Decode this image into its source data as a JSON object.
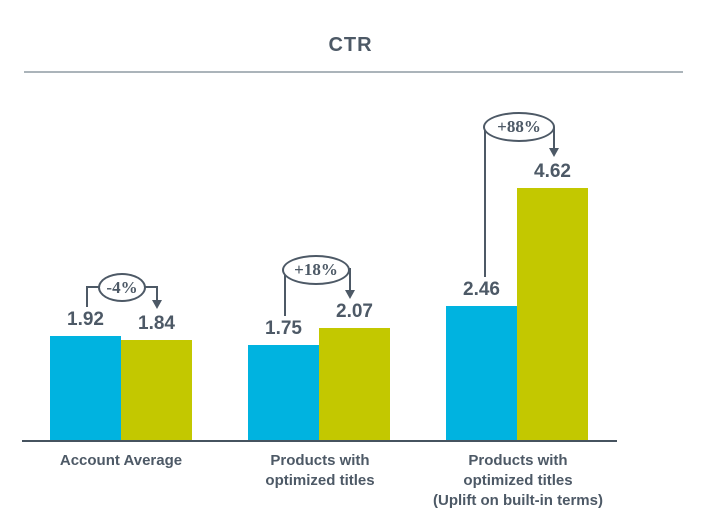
{
  "title": "CTR",
  "colors": {
    "series1": "#00B3E0",
    "series2": "#C3C800",
    "text": "#4D5966",
    "annotation": "#4D5966",
    "axis": "#46535F",
    "divider": "#ABB4BA"
  },
  "chart_data": {
    "type": "bar",
    "title": "CTR",
    "categories": [
      [
        "Account Average"
      ],
      [
        "Products with",
        "optimized titles"
      ],
      [
        "Products with",
        "optimized titles",
        "(Uplift on built-in terms)"
      ]
    ],
    "series": [
      {
        "name": "series1",
        "color": "#00B3E0",
        "values": [
          1.92,
          1.75,
          2.46
        ]
      },
      {
        "name": "series2",
        "color": "#C3C800",
        "values": [
          1.84,
          2.07,
          4.62
        ]
      }
    ],
    "annotations": [
      {
        "label": "-4%"
      },
      {
        "label": "+18%"
      },
      {
        "label": "+88%"
      }
    ],
    "ylim": [
      0,
      5
    ],
    "grid": false,
    "legend": "none"
  }
}
